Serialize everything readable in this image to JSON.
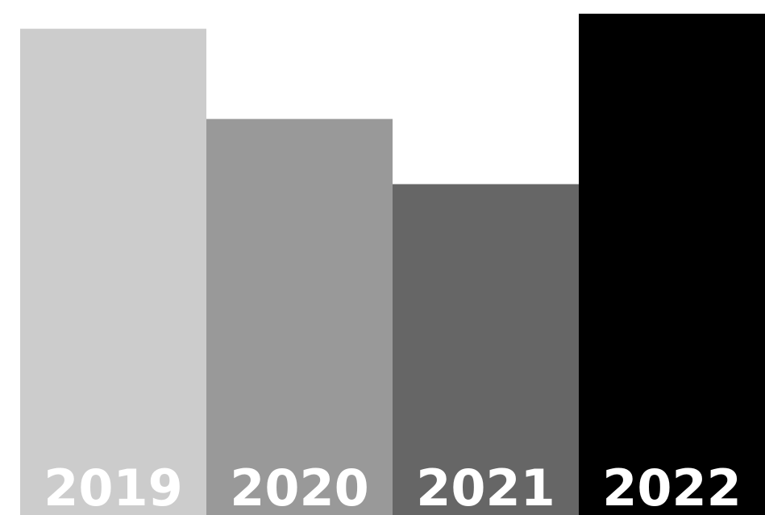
{
  "chart_data": {
    "type": "bar",
    "categories": [
      "2019",
      "2020",
      "2021",
      "2022"
    ],
    "values": [
      97,
      79,
      66,
      100
    ],
    "colors": [
      "#cccccc",
      "#999999",
      "#666666",
      "#000000"
    ],
    "label_color": "#ffffff",
    "ylim": [
      0,
      100
    ],
    "grid": false,
    "legend": "none"
  }
}
